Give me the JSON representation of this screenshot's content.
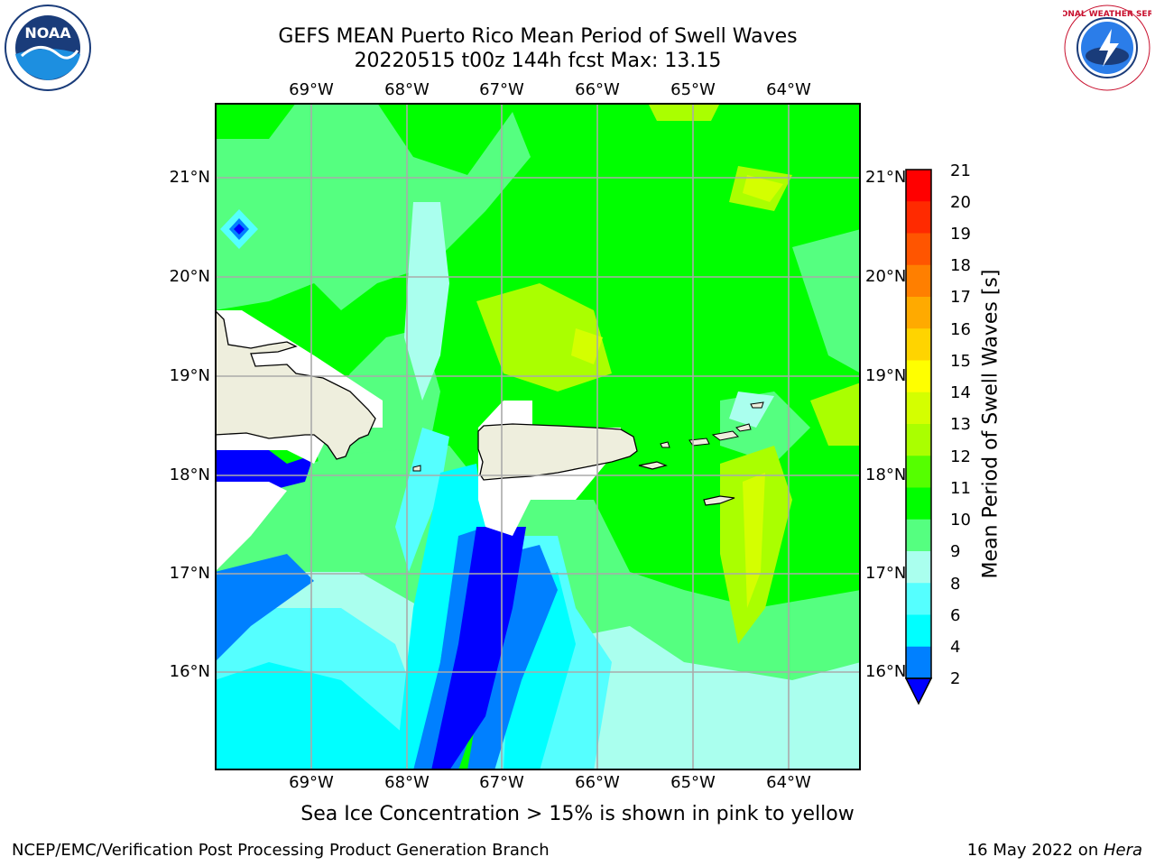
{
  "title": {
    "line1": "GEFS MEAN Puerto Rico Mean Period of Swell Waves",
    "line2": "20220515 t00z 144h fcst    Max: 13.15"
  },
  "logos": {
    "left": "noaa-logo",
    "right": "nws-logo",
    "left_text": "NOAA",
    "right_text": "NATIONAL WEATHER SERVICE"
  },
  "axes": {
    "lon_labels": [
      "69°W",
      "68°W",
      "67°W",
      "66°W",
      "65°W",
      "64°W"
    ],
    "lat_labels": [
      "21°N",
      "20°N",
      "19°N",
      "18°N",
      "17°N",
      "16°N"
    ]
  },
  "map_extent": {
    "lon_min": -70.0,
    "lon_max": -63.25,
    "lat_min": 15.0,
    "lat_max": 21.75
  },
  "colorbar": {
    "label": "Mean Period of Swell Waves [s]",
    "ticks": [
      "21",
      "20",
      "19",
      "18",
      "17",
      "16",
      "15",
      "14",
      "13",
      "12",
      "11",
      "10",
      "9",
      "8",
      "6",
      "4",
      "2"
    ],
    "colors": [
      "#ff0000",
      "#ff2a00",
      "#ff5500",
      "#ff7f00",
      "#ffaa00",
      "#ffd400",
      "#ffff00",
      "#d4ff00",
      "#aaff00",
      "#55ff00",
      "#00ff00",
      "#55ff80",
      "#aaffee",
      "#55ffff",
      "#00ffff",
      "#0080ff",
      "#0000ff"
    ]
  },
  "caption": "Sea Ice Concentration > 15% is shown in pink to yellow",
  "footer": {
    "left": "NCEP/EMC/Verification Post Processing Product Generation Branch",
    "right_date": "16 May 2022 on ",
    "right_host": "Hera"
  }
}
